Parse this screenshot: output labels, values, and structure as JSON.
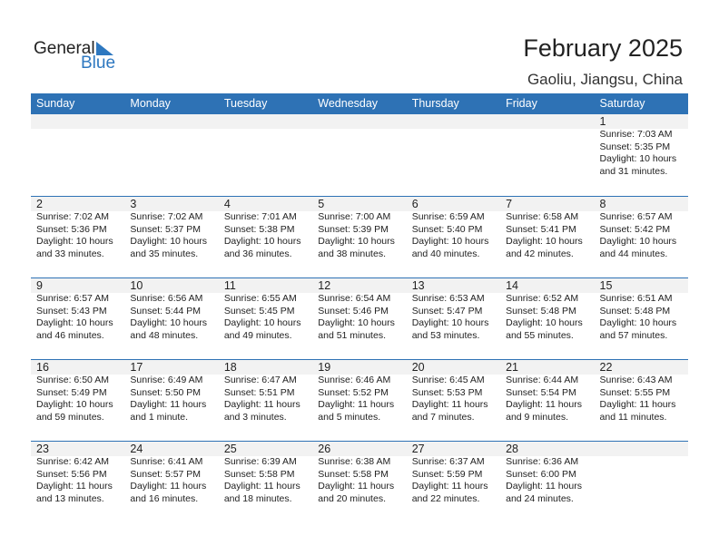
{
  "logo": {
    "text_general": "General",
    "text_blue": "Blue"
  },
  "title": "February 2025",
  "location": "Gaoliu, Jiangsu, China",
  "colors": {
    "header": "#2e72b5",
    "strip": "#f2f2f2"
  },
  "weekdays": [
    "Sunday",
    "Monday",
    "Tuesday",
    "Wednesday",
    "Thursday",
    "Friday",
    "Saturday"
  ],
  "weeks": [
    [
      null,
      null,
      null,
      null,
      null,
      null,
      {
        "day": "1",
        "sunrise": "Sunrise: 7:03 AM",
        "sunset": "Sunset: 5:35 PM",
        "daylight1": "Daylight: 10 hours",
        "daylight2": "and 31 minutes."
      }
    ],
    [
      {
        "day": "2",
        "sunrise": "Sunrise: 7:02 AM",
        "sunset": "Sunset: 5:36 PM",
        "daylight1": "Daylight: 10 hours",
        "daylight2": "and 33 minutes."
      },
      {
        "day": "3",
        "sunrise": "Sunrise: 7:02 AM",
        "sunset": "Sunset: 5:37 PM",
        "daylight1": "Daylight: 10 hours",
        "daylight2": "and 35 minutes."
      },
      {
        "day": "4",
        "sunrise": "Sunrise: 7:01 AM",
        "sunset": "Sunset: 5:38 PM",
        "daylight1": "Daylight: 10 hours",
        "daylight2": "and 36 minutes."
      },
      {
        "day": "5",
        "sunrise": "Sunrise: 7:00 AM",
        "sunset": "Sunset: 5:39 PM",
        "daylight1": "Daylight: 10 hours",
        "daylight2": "and 38 minutes."
      },
      {
        "day": "6",
        "sunrise": "Sunrise: 6:59 AM",
        "sunset": "Sunset: 5:40 PM",
        "daylight1": "Daylight: 10 hours",
        "daylight2": "and 40 minutes."
      },
      {
        "day": "7",
        "sunrise": "Sunrise: 6:58 AM",
        "sunset": "Sunset: 5:41 PM",
        "daylight1": "Daylight: 10 hours",
        "daylight2": "and 42 minutes."
      },
      {
        "day": "8",
        "sunrise": "Sunrise: 6:57 AM",
        "sunset": "Sunset: 5:42 PM",
        "daylight1": "Daylight: 10 hours",
        "daylight2": "and 44 minutes."
      }
    ],
    [
      {
        "day": "9",
        "sunrise": "Sunrise: 6:57 AM",
        "sunset": "Sunset: 5:43 PM",
        "daylight1": "Daylight: 10 hours",
        "daylight2": "and 46 minutes."
      },
      {
        "day": "10",
        "sunrise": "Sunrise: 6:56 AM",
        "sunset": "Sunset: 5:44 PM",
        "daylight1": "Daylight: 10 hours",
        "daylight2": "and 48 minutes."
      },
      {
        "day": "11",
        "sunrise": "Sunrise: 6:55 AM",
        "sunset": "Sunset: 5:45 PM",
        "daylight1": "Daylight: 10 hours",
        "daylight2": "and 49 minutes."
      },
      {
        "day": "12",
        "sunrise": "Sunrise: 6:54 AM",
        "sunset": "Sunset: 5:46 PM",
        "daylight1": "Daylight: 10 hours",
        "daylight2": "and 51 minutes."
      },
      {
        "day": "13",
        "sunrise": "Sunrise: 6:53 AM",
        "sunset": "Sunset: 5:47 PM",
        "daylight1": "Daylight: 10 hours",
        "daylight2": "and 53 minutes."
      },
      {
        "day": "14",
        "sunrise": "Sunrise: 6:52 AM",
        "sunset": "Sunset: 5:48 PM",
        "daylight1": "Daylight: 10 hours",
        "daylight2": "and 55 minutes."
      },
      {
        "day": "15",
        "sunrise": "Sunrise: 6:51 AM",
        "sunset": "Sunset: 5:48 PM",
        "daylight1": "Daylight: 10 hours",
        "daylight2": "and 57 minutes."
      }
    ],
    [
      {
        "day": "16",
        "sunrise": "Sunrise: 6:50 AM",
        "sunset": "Sunset: 5:49 PM",
        "daylight1": "Daylight: 10 hours",
        "daylight2": "and 59 minutes."
      },
      {
        "day": "17",
        "sunrise": "Sunrise: 6:49 AM",
        "sunset": "Sunset: 5:50 PM",
        "daylight1": "Daylight: 11 hours",
        "daylight2": "and 1 minute."
      },
      {
        "day": "18",
        "sunrise": "Sunrise: 6:47 AM",
        "sunset": "Sunset: 5:51 PM",
        "daylight1": "Daylight: 11 hours",
        "daylight2": "and 3 minutes."
      },
      {
        "day": "19",
        "sunrise": "Sunrise: 6:46 AM",
        "sunset": "Sunset: 5:52 PM",
        "daylight1": "Daylight: 11 hours",
        "daylight2": "and 5 minutes."
      },
      {
        "day": "20",
        "sunrise": "Sunrise: 6:45 AM",
        "sunset": "Sunset: 5:53 PM",
        "daylight1": "Daylight: 11 hours",
        "daylight2": "and 7 minutes."
      },
      {
        "day": "21",
        "sunrise": "Sunrise: 6:44 AM",
        "sunset": "Sunset: 5:54 PM",
        "daylight1": "Daylight: 11 hours",
        "daylight2": "and 9 minutes."
      },
      {
        "day": "22",
        "sunrise": "Sunrise: 6:43 AM",
        "sunset": "Sunset: 5:55 PM",
        "daylight1": "Daylight: 11 hours",
        "daylight2": "and 11 minutes."
      }
    ],
    [
      {
        "day": "23",
        "sunrise": "Sunrise: 6:42 AM",
        "sunset": "Sunset: 5:56 PM",
        "daylight1": "Daylight: 11 hours",
        "daylight2": "and 13 minutes."
      },
      {
        "day": "24",
        "sunrise": "Sunrise: 6:41 AM",
        "sunset": "Sunset: 5:57 PM",
        "daylight1": "Daylight: 11 hours",
        "daylight2": "and 16 minutes."
      },
      {
        "day": "25",
        "sunrise": "Sunrise: 6:39 AM",
        "sunset": "Sunset: 5:58 PM",
        "daylight1": "Daylight: 11 hours",
        "daylight2": "and 18 minutes."
      },
      {
        "day": "26",
        "sunrise": "Sunrise: 6:38 AM",
        "sunset": "Sunset: 5:58 PM",
        "daylight1": "Daylight: 11 hours",
        "daylight2": "and 20 minutes."
      },
      {
        "day": "27",
        "sunrise": "Sunrise: 6:37 AM",
        "sunset": "Sunset: 5:59 PM",
        "daylight1": "Daylight: 11 hours",
        "daylight2": "and 22 minutes."
      },
      {
        "day": "28",
        "sunrise": "Sunrise: 6:36 AM",
        "sunset": "Sunset: 6:00 PM",
        "daylight1": "Daylight: 11 hours",
        "daylight2": "and 24 minutes."
      },
      null
    ]
  ]
}
